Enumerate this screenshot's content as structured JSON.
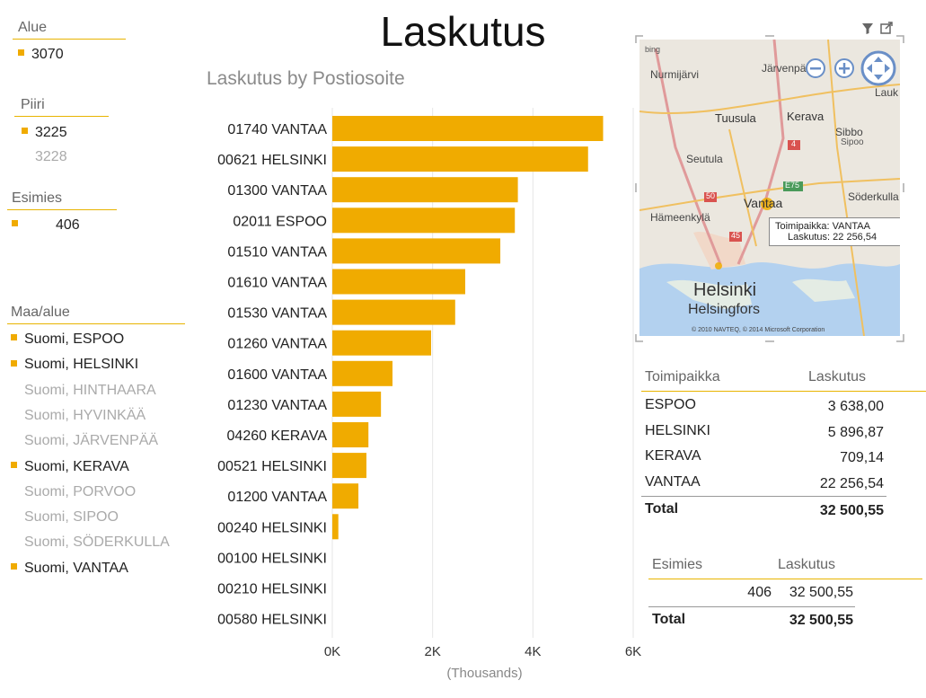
{
  "title": "Laskutus",
  "slicers": {
    "alue": {
      "header": "Alue",
      "items": [
        {
          "label": "3070",
          "selected": true
        }
      ]
    },
    "piiri": {
      "header": "Piiri",
      "items": [
        {
          "label": "3225",
          "selected": true
        },
        {
          "label": "3228",
          "selected": false
        }
      ]
    },
    "esimies": {
      "header": "Esimies",
      "items": [
        {
          "label": "406",
          "selected": true
        }
      ]
    },
    "maa_alue": {
      "header": "Maa/alue",
      "items": [
        {
          "label": "Suomi, ESPOO",
          "selected": true
        },
        {
          "label": "Suomi, HELSINKI",
          "selected": true
        },
        {
          "label": "Suomi, HINTHAARA",
          "selected": false
        },
        {
          "label": "Suomi, HYVINKÄÄ",
          "selected": false
        },
        {
          "label": "Suomi, JÄRVENPÄÄ",
          "selected": false
        },
        {
          "label": "Suomi, KERAVA",
          "selected": true
        },
        {
          "label": "Suomi, PORVOO",
          "selected": false
        },
        {
          "label": "Suomi, SIPOO",
          "selected": false
        },
        {
          "label": "Suomi, SÖDERKULLA",
          "selected": false
        },
        {
          "label": "Suomi, VANTAA",
          "selected": true
        }
      ]
    }
  },
  "chart_data": {
    "type": "bar",
    "orientation": "horizontal",
    "title": "Laskutus by Postiosoite",
    "xlabel": "(Thousands)",
    "xlim": [
      0,
      6
    ],
    "x_ticks": [
      "0K",
      "2K",
      "4K",
      "6K"
    ],
    "grid": true,
    "color": "#f0ab00",
    "categories": [
      "01740 VANTAA",
      "00621 HELSINKI",
      "01300 VANTAA",
      "02011 ESPOO",
      "01510 VANTAA",
      "01610 VANTAA",
      "01530 VANTAA",
      "01260 VANTAA",
      "01600 VANTAA",
      "01230 VANTAA",
      "04260 KERAVA",
      "00521 HELSINKI",
      "01200 VANTAA",
      "00240 HELSINKI",
      "00100 HELSINKI",
      "00210 HELSINKI",
      "00580 HELSINKI"
    ],
    "values": [
      5.4,
      5.1,
      3.7,
      3.64,
      3.35,
      2.65,
      2.45,
      1.97,
      1.2,
      0.97,
      0.72,
      0.68,
      0.52,
      0.12,
      0.0,
      0.0,
      0.0
    ]
  },
  "map": {
    "attribution_logo": "bing",
    "copyright": "© 2010 NAVTEQ, © 2014 Microsoft Corporation",
    "places": [
      "Nurmijärvi",
      "Järvenpää",
      "Lauk",
      "Tuusula",
      "Kerava",
      "Sibbo",
      "Sipoo",
      "Seutula",
      "Söderkulla",
      "Vantaa",
      "Hämeenkylä",
      "Helsinki",
      "Helsingfors"
    ],
    "road_labels": [
      "4",
      "E75",
      "50",
      "45"
    ],
    "tooltip": {
      "key1": "Toimipaikka:",
      "val1": "VANTAA",
      "key2": "Laskutus:",
      "val2": "22 256,54"
    },
    "icons": {
      "zoom_out": "zoom-out-icon",
      "zoom_in": "zoom-in-icon",
      "pan": "pan-icon"
    }
  },
  "toolbar": {
    "filter_icon": "filter-icon",
    "popout_icon": "popout-icon"
  },
  "table1": {
    "headers": [
      "Toimipaikka",
      "Laskutus"
    ],
    "rows": [
      [
        "ESPOO",
        "3 638,00"
      ],
      [
        "HELSINKI",
        "5 896,87"
      ],
      [
        "KERAVA",
        "709,14"
      ],
      [
        "VANTAA",
        "22 256,54"
      ]
    ],
    "total_label": "Total",
    "total_value": "32 500,55"
  },
  "table2": {
    "headers": [
      "Esimies",
      "Laskutus"
    ],
    "rows": [
      [
        "406",
        "32 500,55"
      ]
    ],
    "total_label": "Total",
    "total_value": "32 500,55"
  },
  "colors": {
    "accent": "#f0ab00",
    "map_bg": "#e9e5dc",
    "water": "#b3d1ef"
  }
}
